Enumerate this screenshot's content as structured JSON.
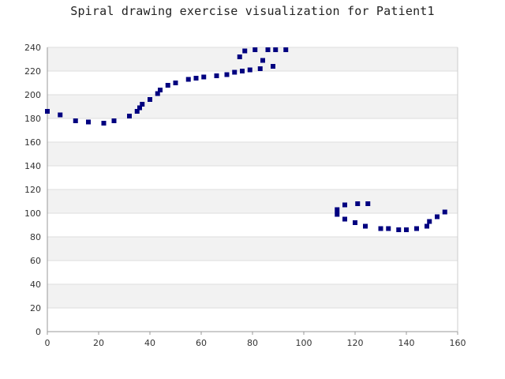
{
  "chart_data": {
    "type": "scatter",
    "title": "Spiral drawing exercise visualization for Patient1",
    "xlabel": "",
    "ylabel": "",
    "xlim": [
      0,
      160
    ],
    "ylim": [
      0,
      240
    ],
    "x_ticks": [
      0,
      20,
      40,
      60,
      80,
      100,
      120,
      140,
      160
    ],
    "y_ticks": [
      0,
      20,
      40,
      60,
      80,
      100,
      120,
      140,
      160,
      180,
      200,
      220,
      240
    ],
    "grid": "horizontal alternating bands",
    "band_color": "#f2f2f2",
    "marker_color": "#000080",
    "series": [
      {
        "points": [
          [
            0,
            186
          ],
          [
            5,
            183
          ],
          [
            11,
            178
          ],
          [
            16,
            177
          ],
          [
            22,
            176
          ],
          [
            26,
            178
          ],
          [
            32,
            182
          ],
          [
            35,
            186
          ],
          [
            36,
            189
          ],
          [
            37,
            192
          ],
          [
            40,
            196
          ],
          [
            43,
            201
          ],
          [
            44,
            204
          ],
          [
            47,
            208
          ],
          [
            50,
            210
          ],
          [
            55,
            213
          ],
          [
            58,
            214
          ],
          [
            61,
            215
          ],
          [
            66,
            216
          ],
          [
            70,
            217
          ],
          [
            73,
            219
          ],
          [
            76,
            220
          ],
          [
            79,
            221
          ],
          [
            83,
            222
          ],
          [
            88,
            224
          ],
          [
            75,
            232
          ],
          [
            77,
            237
          ],
          [
            81,
            238
          ],
          [
            84,
            229
          ],
          [
            86,
            238
          ],
          [
            89,
            238
          ],
          [
            93,
            238
          ],
          [
            113,
            99
          ],
          [
            113,
            103
          ],
          [
            116,
            95
          ],
          [
            116,
            107
          ],
          [
            120,
            92
          ],
          [
            121,
            108
          ],
          [
            124,
            89
          ],
          [
            125,
            108
          ],
          [
            130,
            87
          ],
          [
            133,
            87
          ],
          [
            137,
            86
          ],
          [
            140,
            86
          ],
          [
            144,
            87
          ],
          [
            148,
            89
          ],
          [
            149,
            93
          ],
          [
            152,
            97
          ],
          [
            155,
            101
          ]
        ]
      }
    ]
  }
}
